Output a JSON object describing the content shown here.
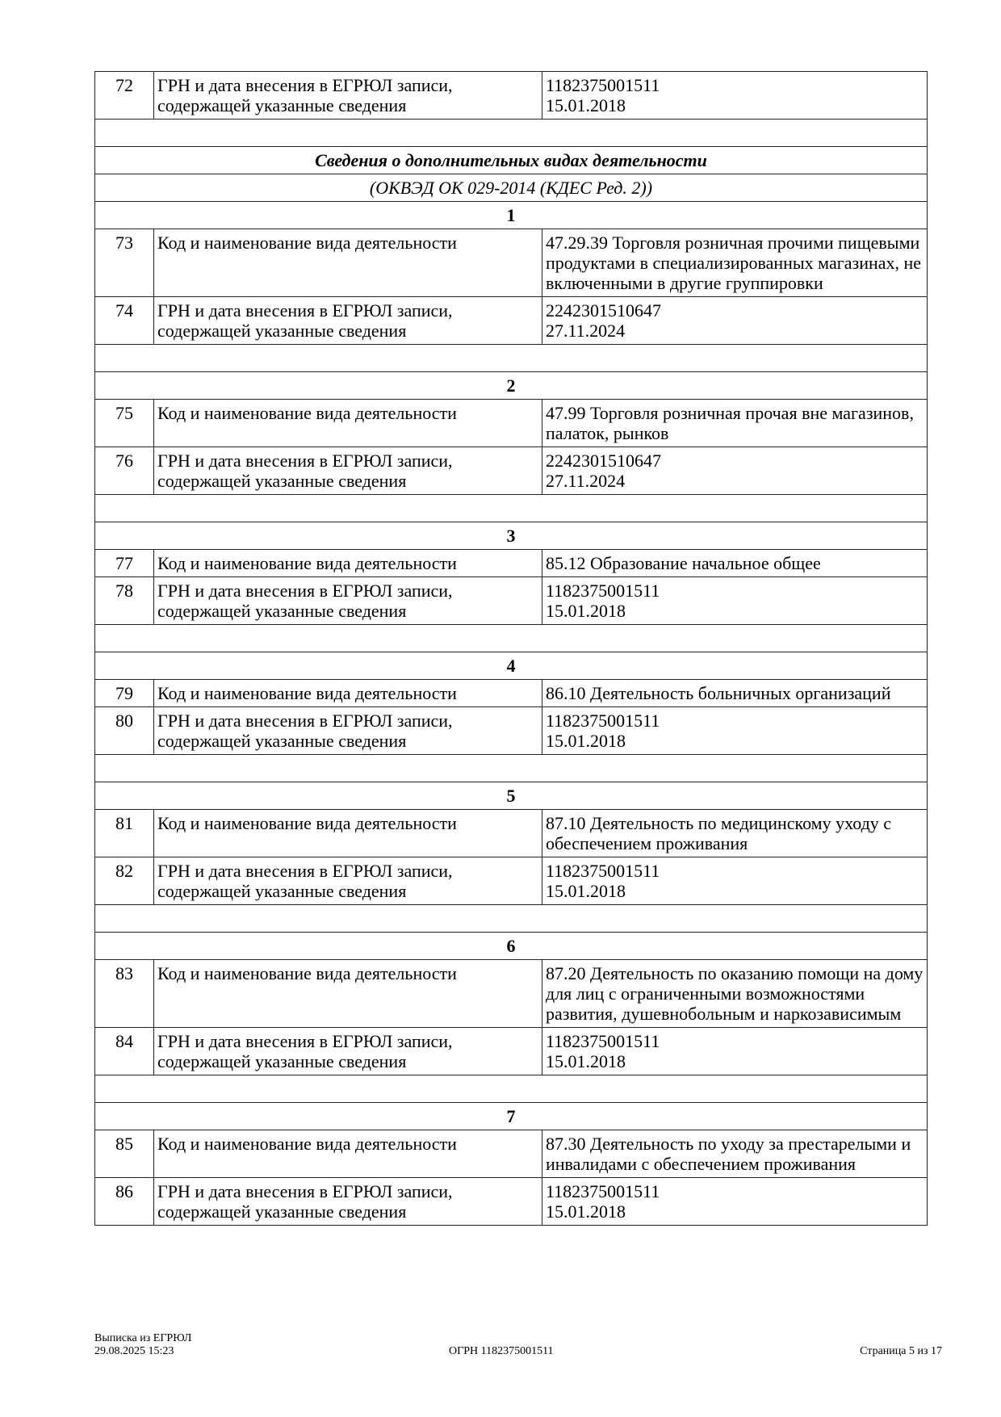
{
  "table": {
    "first_row": {
      "num": "72",
      "label": "ГРН и дата внесения в ЕГРЮЛ записи, содержащей указанные сведения",
      "value_lines": [
        "1182375001511",
        "15.01.2018"
      ]
    },
    "section_title": "Сведения о дополнительных видах деятельности",
    "section_subtitle": "(ОКВЭД ОК 029-2014 (КДЕС Ред. 2))",
    "groups": [
      {
        "n": "1",
        "rows": [
          {
            "num": "73",
            "label": "Код и наименование вида деятельности",
            "value": "47.29.39 Торговля розничная прочими пищевыми продуктами в специализированных магазинах, не включенными в другие группировки"
          },
          {
            "num": "74",
            "label": "ГРН и дата внесения в ЕГРЮЛ записи, содержащей указанные сведения",
            "value": "2242301510647\n27.11.2024"
          }
        ]
      },
      {
        "n": "2",
        "rows": [
          {
            "num": "75",
            "label": "Код и наименование вида деятельности",
            "value": "47.99 Торговля розничная прочая вне магазинов, палаток, рынков"
          },
          {
            "num": "76",
            "label": "ГРН и дата внесения в ЕГРЮЛ записи, содержащей указанные сведения",
            "value": "2242301510647\n27.11.2024"
          }
        ]
      },
      {
        "n": "3",
        "rows": [
          {
            "num": "77",
            "label": "Код и наименование вида деятельности",
            "value": "85.12 Образование начальное общее"
          },
          {
            "num": "78",
            "label": "ГРН и дата внесения в ЕГРЮЛ записи, содержащей указанные сведения",
            "value": "1182375001511\n15.01.2018"
          }
        ]
      },
      {
        "n": "4",
        "rows": [
          {
            "num": "79",
            "label": "Код и наименование вида деятельности",
            "value": "86.10 Деятельность больничных организаций"
          },
          {
            "num": "80",
            "label": "ГРН и дата внесения в ЕГРЮЛ записи, содержащей указанные сведения",
            "value": "1182375001511\n15.01.2018"
          }
        ]
      },
      {
        "n": "5",
        "rows": [
          {
            "num": "81",
            "label": "Код и наименование вида деятельности",
            "value": "87.10 Деятельность по медицинскому уходу с обеспечением проживания"
          },
          {
            "num": "82",
            "label": "ГРН и дата внесения в ЕГРЮЛ записи, содержащей указанные сведения",
            "value": "1182375001511\n15.01.2018"
          }
        ]
      },
      {
        "n": "6",
        "rows": [
          {
            "num": "83",
            "label": "Код и наименование вида деятельности",
            "value": "87.20 Деятельность по оказанию помощи на дому для лиц с ограниченными возможностями развития, душевнобольным и наркозависимым"
          },
          {
            "num": "84",
            "label": "ГРН и дата внесения в ЕГРЮЛ записи, содержащей указанные сведения",
            "value": "1182375001511\n15.01.2018"
          }
        ]
      },
      {
        "n": "7",
        "rows": [
          {
            "num": "85",
            "label": "Код и наименование вида деятельности",
            "value": "87.30 Деятельность по уходу за престарелыми и инвалидами с обеспечением проживания"
          },
          {
            "num": "86",
            "label": "ГРН и дата внесения в ЕГРЮЛ записи, содержащей указанные сведения",
            "value": "1182375001511\n15.01.2018"
          }
        ]
      }
    ]
  },
  "footer": {
    "doc_name": "Выписка из ЕГРЮЛ",
    "datetime": "29.08.2025 15:23",
    "ogrn": "ОГРН 1182375001511",
    "page": "Страница 5 из 17"
  }
}
